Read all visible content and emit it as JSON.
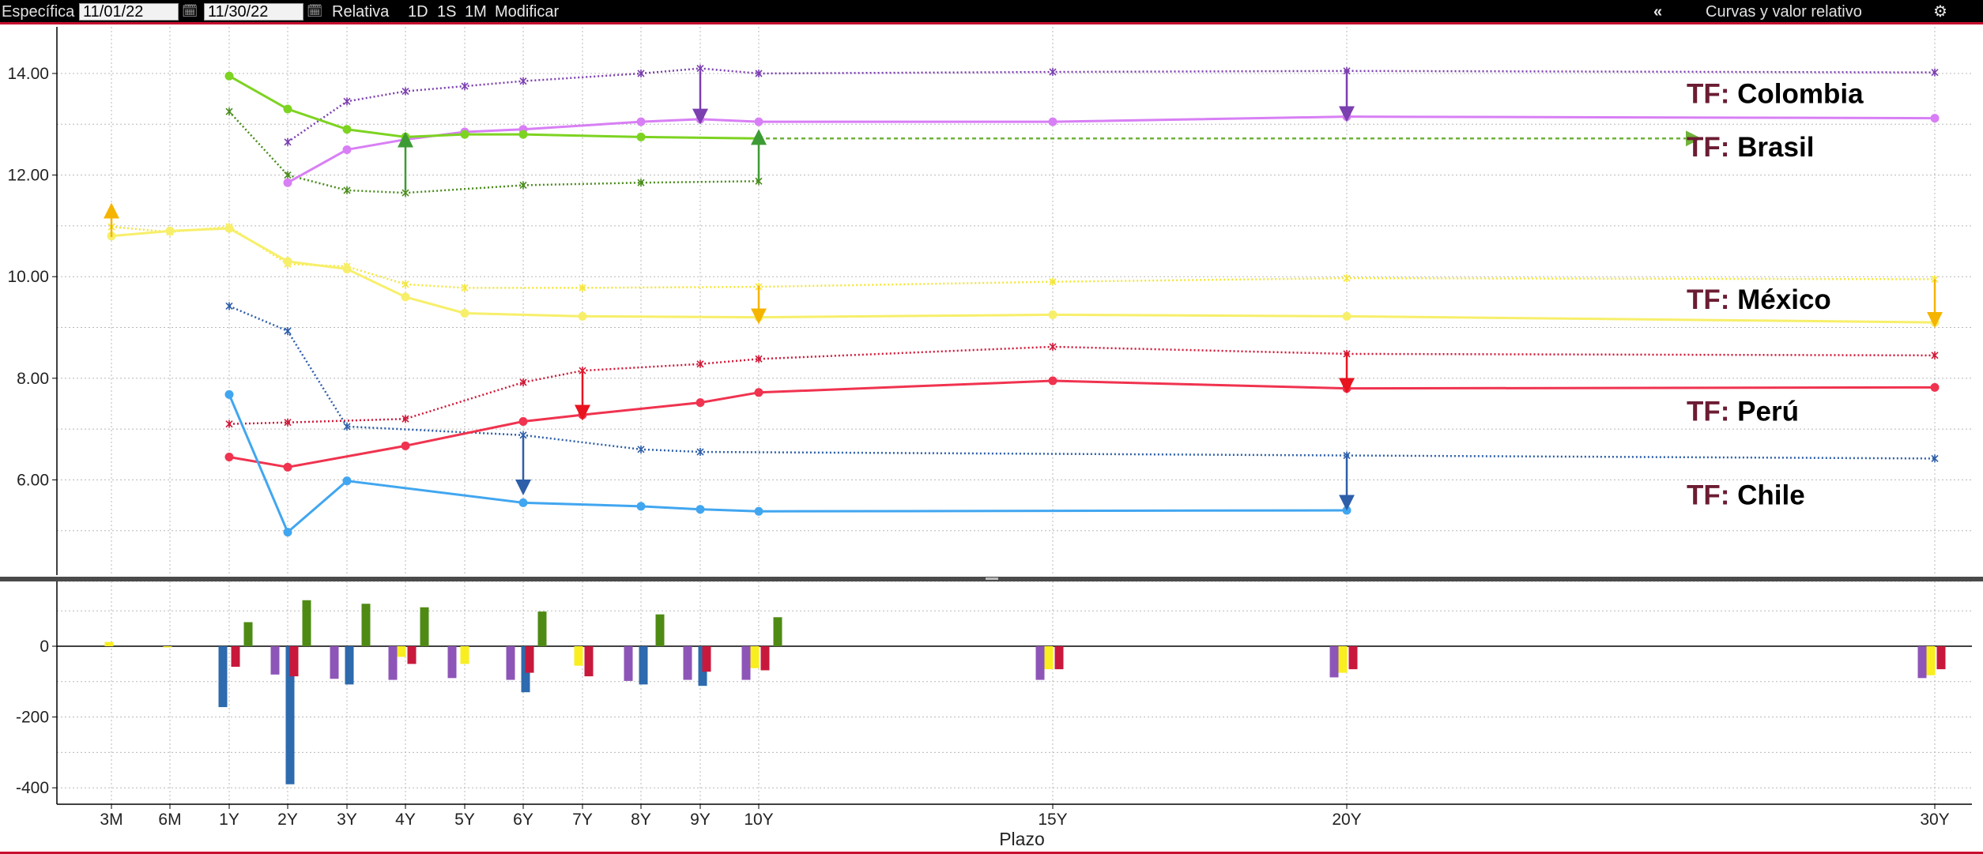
{
  "toolbar": {
    "mode_label": "Específica",
    "start_date": "11/01/22",
    "end_date": "11/30/22",
    "relative_label": "Relativa",
    "period_1d": "1D",
    "period_1s": "1S",
    "period_1m": "1M",
    "modify_label": "Modificar",
    "collapse_glyph": "«",
    "panel_title": "Curvas y valor relativo",
    "settings_icon": "gear-icon"
  },
  "chart_data": {
    "type": "line",
    "xlabel": "Plazo",
    "x_categories": [
      "3M",
      "6M",
      "1Y",
      "2Y",
      "3Y",
      "4Y",
      "5Y",
      "6Y",
      "7Y",
      "8Y",
      "9Y",
      "10Y",
      "15Y",
      "20Y",
      "30Y"
    ],
    "x_years": [
      0.25,
      0.5,
      1,
      2,
      3,
      4,
      5,
      6,
      7,
      8,
      9,
      10,
      15,
      20,
      30
    ],
    "upper_panel": {
      "ylim": [
        4.0,
        15.0
      ],
      "y_ticks": [
        "14.00",
        "12.00",
        "10.00",
        "8.00",
        "6.00"
      ],
      "grid": true,
      "series": [
        {
          "name": "Colombia",
          "color": "#d87ff5",
          "style": "solid",
          "x": [
            "2Y",
            "3Y",
            "4Y",
            "5Y",
            "6Y",
            "8Y",
            "9Y",
            "10Y",
            "15Y",
            "20Y",
            "30Y"
          ],
          "y": [
            11.85,
            12.5,
            12.7,
            12.85,
            12.9,
            13.05,
            13.1,
            13.05,
            13.05,
            13.15,
            13.12
          ]
        },
        {
          "name": "Colombia",
          "color": "#7b3fb0",
          "style": "dotted",
          "x": [
            "2Y",
            "3Y",
            "4Y",
            "5Y",
            "6Y",
            "8Y",
            "9Y",
            "10Y",
            "15Y",
            "20Y",
            "30Y"
          ],
          "y": [
            12.65,
            13.45,
            13.65,
            13.75,
            13.85,
            14.0,
            14.1,
            14.0,
            14.03,
            14.05,
            14.02
          ]
        },
        {
          "name": "Brasil",
          "color": "#7dd321",
          "style": "solid",
          "x": [
            "1Y",
            "2Y",
            "3Y",
            "4Y",
            "5Y",
            "6Y",
            "8Y",
            "10Y"
          ],
          "y": [
            13.95,
            13.3,
            12.9,
            12.75,
            12.8,
            12.8,
            12.75,
            12.72
          ]
        },
        {
          "name": "Brasil",
          "color": "#4a8c1c",
          "style": "dotted",
          "x": [
            "1Y",
            "2Y",
            "3Y",
            "4Y",
            "6Y",
            "8Y",
            "10Y"
          ],
          "y": [
            13.25,
            12.0,
            11.7,
            11.65,
            11.8,
            11.85,
            11.88
          ]
        },
        {
          "name": "México",
          "color": "#f7ef6a",
          "style": "solid",
          "x": [
            "3M",
            "6M",
            "1Y",
            "2Y",
            "3Y",
            "4Y",
            "5Y",
            "7Y",
            "10Y",
            "15Y",
            "20Y",
            "30Y"
          ],
          "y": [
            10.8,
            10.9,
            10.95,
            10.3,
            10.15,
            9.6,
            9.28,
            9.22,
            9.2,
            9.25,
            9.22,
            9.1
          ]
        },
        {
          "name": "México",
          "color": "#f4e63a",
          "style": "dotted",
          "x": [
            "3M",
            "6M",
            "1Y",
            "2Y",
            "3Y",
            "4Y",
            "5Y",
            "7Y",
            "10Y",
            "15Y",
            "20Y",
            "30Y"
          ],
          "y": [
            10.98,
            10.88,
            10.98,
            10.25,
            10.2,
            9.85,
            9.78,
            9.78,
            9.8,
            9.9,
            9.97,
            9.95
          ]
        },
        {
          "name": "Perú",
          "color": "#f0334f",
          "style": "solid",
          "x": [
            "1Y",
            "2Y",
            "4Y",
            "6Y",
            "7Y",
            "9Y",
            "10Y",
            "15Y",
            "20Y",
            "30Y"
          ],
          "y": [
            6.45,
            6.25,
            6.67,
            7.15,
            7.28,
            7.52,
            7.72,
            7.95,
            7.8,
            7.82
          ]
        },
        {
          "name": "Perú",
          "color": "#d01838",
          "style": "dotted",
          "x": [
            "1Y",
            "2Y",
            "4Y",
            "6Y",
            "7Y",
            "9Y",
            "10Y",
            "15Y",
            "20Y",
            "30Y"
          ],
          "y": [
            7.1,
            7.13,
            7.2,
            7.92,
            8.15,
            8.28,
            8.38,
            8.62,
            8.48,
            8.45
          ]
        },
        {
          "name": "Chile",
          "color": "#41a6f0",
          "style": "solid",
          "x": [
            "1Y",
            "2Y",
            "3Y",
            "6Y",
            "8Y",
            "9Y",
            "10Y",
            "20Y"
          ],
          "y": [
            7.68,
            4.97,
            5.98,
            5.55,
            5.48,
            5.42,
            5.38,
            5.4
          ]
        },
        {
          "name": "Chile",
          "color": "#2d5ea8",
          "style": "dotted",
          "x": [
            "1Y",
            "2Y",
            "3Y",
            "6Y",
            "8Y",
            "9Y",
            "20Y",
            "30Y"
          ],
          "y": [
            9.42,
            8.93,
            7.05,
            6.88,
            6.6,
            6.55,
            6.48,
            6.42
          ]
        }
      ],
      "arrows": [
        {
          "x": "9Y",
          "from": 14.05,
          "to": 13.15,
          "color": "#7b3fb0"
        },
        {
          "x": "20Y",
          "from": 14.05,
          "to": 13.2,
          "color": "#7b3fb0"
        },
        {
          "x": "4Y",
          "from": 11.7,
          "to": 12.7,
          "color": "#3d9b35"
        },
        {
          "x": "10Y",
          "from": 11.9,
          "to": 12.75,
          "color": "#3d9b35"
        },
        {
          "x": "3M",
          "from": 10.78,
          "to": 11.3,
          "color": "#f4b400"
        },
        {
          "x": "10Y",
          "from": 9.82,
          "to": 9.22,
          "color": "#f4b400"
        },
        {
          "x": "30Y",
          "from": 9.95,
          "to": 9.15,
          "color": "#f4b400"
        },
        {
          "x": "7Y",
          "from": 8.18,
          "to": 7.32,
          "color": "#e8131e"
        },
        {
          "x": "20Y",
          "from": 8.5,
          "to": 7.85,
          "color": "#e8131e"
        },
        {
          "x": "6Y",
          "from": 6.88,
          "to": 5.85,
          "color": "#2d5ea8"
        },
        {
          "x": "20Y",
          "from": 6.5,
          "to": 5.55,
          "color": "#2d5ea8"
        }
      ],
      "dashed_extension": {
        "name": "Brasil",
        "color": "#6fb33a",
        "y": 12.72,
        "from_x": "10Y",
        "to_years": 25.9
      },
      "annotations": [
        {
          "prefix": "TF:",
          "country": "Colombia",
          "y": 13.6
        },
        {
          "prefix": "TF:",
          "country": "Brasil",
          "y": 12.55
        },
        {
          "prefix": "TF:",
          "country": "México",
          "y": 9.55
        },
        {
          "prefix": "TF:",
          "country": "Perú",
          "y": 7.35
        },
        {
          "prefix": "TF:",
          "country": "Chile",
          "y": 5.7
        }
      ],
      "annotation_prefix_color": "#6b1c33",
      "annotation_text_color": "#000000"
    },
    "lower_panel": {
      "type": "bar",
      "ylim": [
        -450,
        200
      ],
      "y_ticks": [
        "0",
        "-200",
        "-400"
      ],
      "y_tick_values": [
        0,
        -200,
        -400
      ],
      "grid": true,
      "colors": {
        "Colombia": "#8e55b8",
        "Brasil": "#4f8b14",
        "México": "#f8ee20",
        "Perú": "#c8193c",
        "Chile": "#2d6aae"
      },
      "groups": [
        {
          "x": "3M",
          "bars": [
            {
              "s": "México",
              "v": 12
            }
          ]
        },
        {
          "x": "6M",
          "bars": [
            {
              "s": "México",
              "v": -3
            }
          ]
        },
        {
          "x": "1Y",
          "bars": [
            {
              "s": "Chile",
              "v": -172
            },
            {
              "s": "Perú",
              "v": -58
            },
            {
              "s": "Brasil",
              "v": 68
            }
          ]
        },
        {
          "x": "2Y",
          "bars": [
            {
              "s": "Colombia",
              "v": -80
            },
            {
              "s": "Chile",
              "v": -390
            },
            {
              "s": "Perú",
              "v": -85
            },
            {
              "s": "Brasil",
              "v": 130
            }
          ]
        },
        {
          "x": "3Y",
          "bars": [
            {
              "s": "Colombia",
              "v": -92
            },
            {
              "s": "Chile",
              "v": -108
            },
            {
              "s": "Brasil",
              "v": 120
            }
          ]
        },
        {
          "x": "4Y",
          "bars": [
            {
              "s": "Colombia",
              "v": -95
            },
            {
              "s": "México",
              "v": -30
            },
            {
              "s": "Perú",
              "v": -50
            },
            {
              "s": "Brasil",
              "v": 110
            }
          ]
        },
        {
          "x": "5Y",
          "bars": [
            {
              "s": "Colombia",
              "v": -90
            },
            {
              "s": "México",
              "v": -50
            }
          ]
        },
        {
          "x": "6Y",
          "bars": [
            {
              "s": "Colombia",
              "v": -95
            },
            {
              "s": "Chile",
              "v": -130
            },
            {
              "s": "Perú",
              "v": -75
            },
            {
              "s": "Brasil",
              "v": 98
            }
          ]
        },
        {
          "x": "7Y",
          "bars": [
            {
              "s": "México",
              "v": -55
            },
            {
              "s": "Perú",
              "v": -85
            }
          ]
        },
        {
          "x": "8Y",
          "bars": [
            {
              "s": "Colombia",
              "v": -98
            },
            {
              "s": "Chile",
              "v": -108
            },
            {
              "s": "Brasil",
              "v": 90
            }
          ]
        },
        {
          "x": "9Y",
          "bars": [
            {
              "s": "Colombia",
              "v": -95
            },
            {
              "s": "Chile",
              "v": -112
            },
            {
              "s": "Perú",
              "v": -72
            }
          ]
        },
        {
          "x": "10Y",
          "bars": [
            {
              "s": "Colombia",
              "v": -95
            },
            {
              "s": "México",
              "v": -62
            },
            {
              "s": "Perú",
              "v": -68
            },
            {
              "s": "Brasil",
              "v": 82
            }
          ]
        },
        {
          "x": "15Y",
          "bars": [
            {
              "s": "Colombia",
              "v": -95
            },
            {
              "s": "México",
              "v": -65
            },
            {
              "s": "Perú",
              "v": -65
            }
          ]
        },
        {
          "x": "20Y",
          "bars": [
            {
              "s": "Colombia",
              "v": -88
            },
            {
              "s": "México",
              "v": -75
            },
            {
              "s": "Perú",
              "v": -65
            }
          ]
        },
        {
          "x": "30Y",
          "bars": [
            {
              "s": "Colombia",
              "v": -90
            },
            {
              "s": "México",
              "v": -82
            },
            {
              "s": "Perú",
              "v": -65
            }
          ]
        }
      ]
    }
  }
}
